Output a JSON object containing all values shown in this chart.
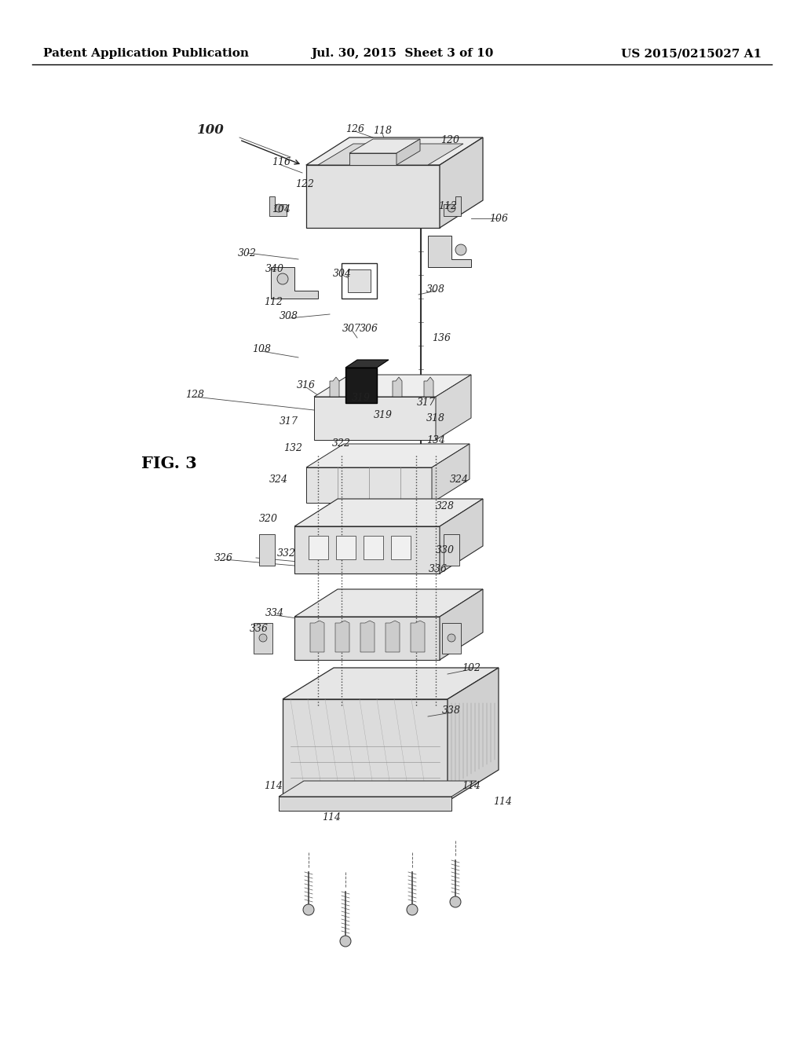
{
  "background_color": "#f5f5f0",
  "header_left": "Patent Application Publication",
  "header_mid": "Jul. 30, 2015  Sheet 3 of 10",
  "header_right": "US 2015/0215027 A1",
  "fig_label": "FIG. 3",
  "line_color": "#2a2a2a",
  "label_color": "#333333",
  "label_fontsize": 9,
  "fig_label_fontsize": 15,
  "header_fontsize": 11
}
